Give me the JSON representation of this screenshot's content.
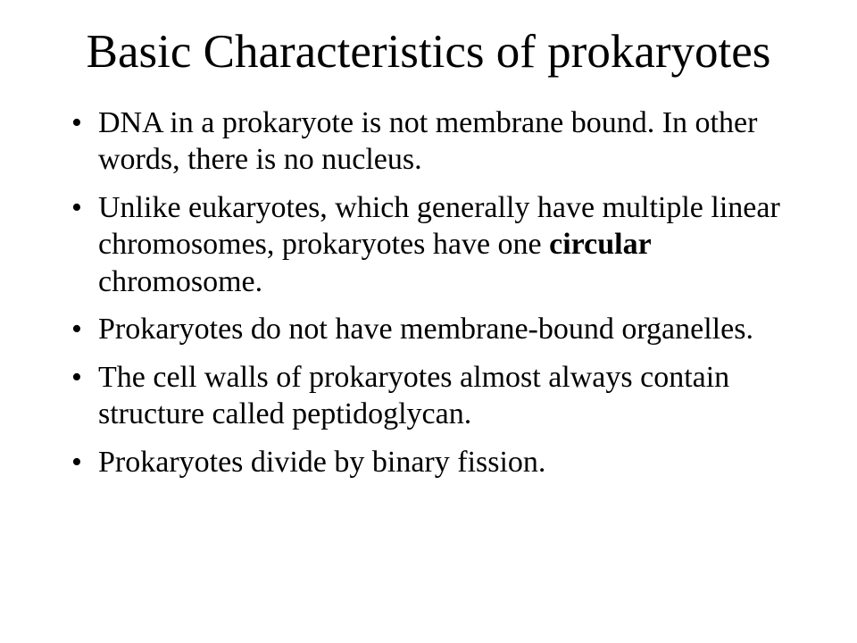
{
  "slide": {
    "title": "Basic Characteristics of prokaryotes",
    "title_fontsize": 53,
    "title_align": "center",
    "body_fontsize": 34,
    "font_family": "Times New Roman",
    "text_color": "#000000",
    "background_color": "#ffffff",
    "bullets": [
      {
        "runs": [
          {
            "text": "DNA in a prokaryote is not membrane bound.  In other words, there is no nucleus.",
            "bold": false
          }
        ]
      },
      {
        "runs": [
          {
            "text": "Unlike eukaryotes, which generally have multiple linear chromosomes, prokaryotes have one ",
            "bold": false
          },
          {
            "text": "circular",
            "bold": true
          },
          {
            "text": " chromosome.",
            "bold": false
          }
        ]
      },
      {
        "runs": [
          {
            "text": "Prokaryotes do not have membrane-bound organelles.",
            "bold": false
          }
        ]
      },
      {
        "runs": [
          {
            "text": "The cell walls of prokaryotes almost always contain structure called peptidoglycan.",
            "bold": false
          }
        ]
      },
      {
        "runs": [
          {
            "text": "Prokaryotes divide by binary fission.",
            "bold": false
          }
        ]
      }
    ]
  }
}
